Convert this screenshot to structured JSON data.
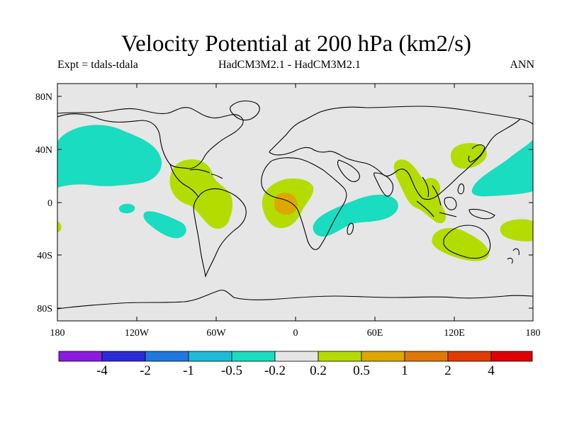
{
  "title": "Velocity Potential at 200 hPa (km2/s)",
  "subtitle_left": "Expt = tdals-tdala",
  "subtitle_center": "HadCM3M2.1 - HadCM3M2.1",
  "subtitle_right": "ANN",
  "y_ticks": [
    "80N",
    "40N",
    "0",
    "40S",
    "80S"
  ],
  "x_ticks": [
    "180",
    "120W",
    "60W",
    "0",
    "60E",
    "120E",
    "180"
  ],
  "colorbar": {
    "colors": [
      "#8a1ce0",
      "#2b2bd8",
      "#1e78e0",
      "#1cbcd8",
      "#19dcc0",
      "#e6e6e6",
      "#b4dc00",
      "#dca800",
      "#e07808",
      "#e03c00",
      "#e00000"
    ],
    "labels": [
      "-4",
      "-2",
      "-1",
      "-0.5",
      "-0.2",
      "0.2",
      "0.5",
      "1",
      "2",
      "4"
    ]
  },
  "colors": {
    "ocean": "#e6e6e6",
    "neg": "#19dcc0",
    "pos": "#b4dc00",
    "pos2": "#dca800"
  }
}
